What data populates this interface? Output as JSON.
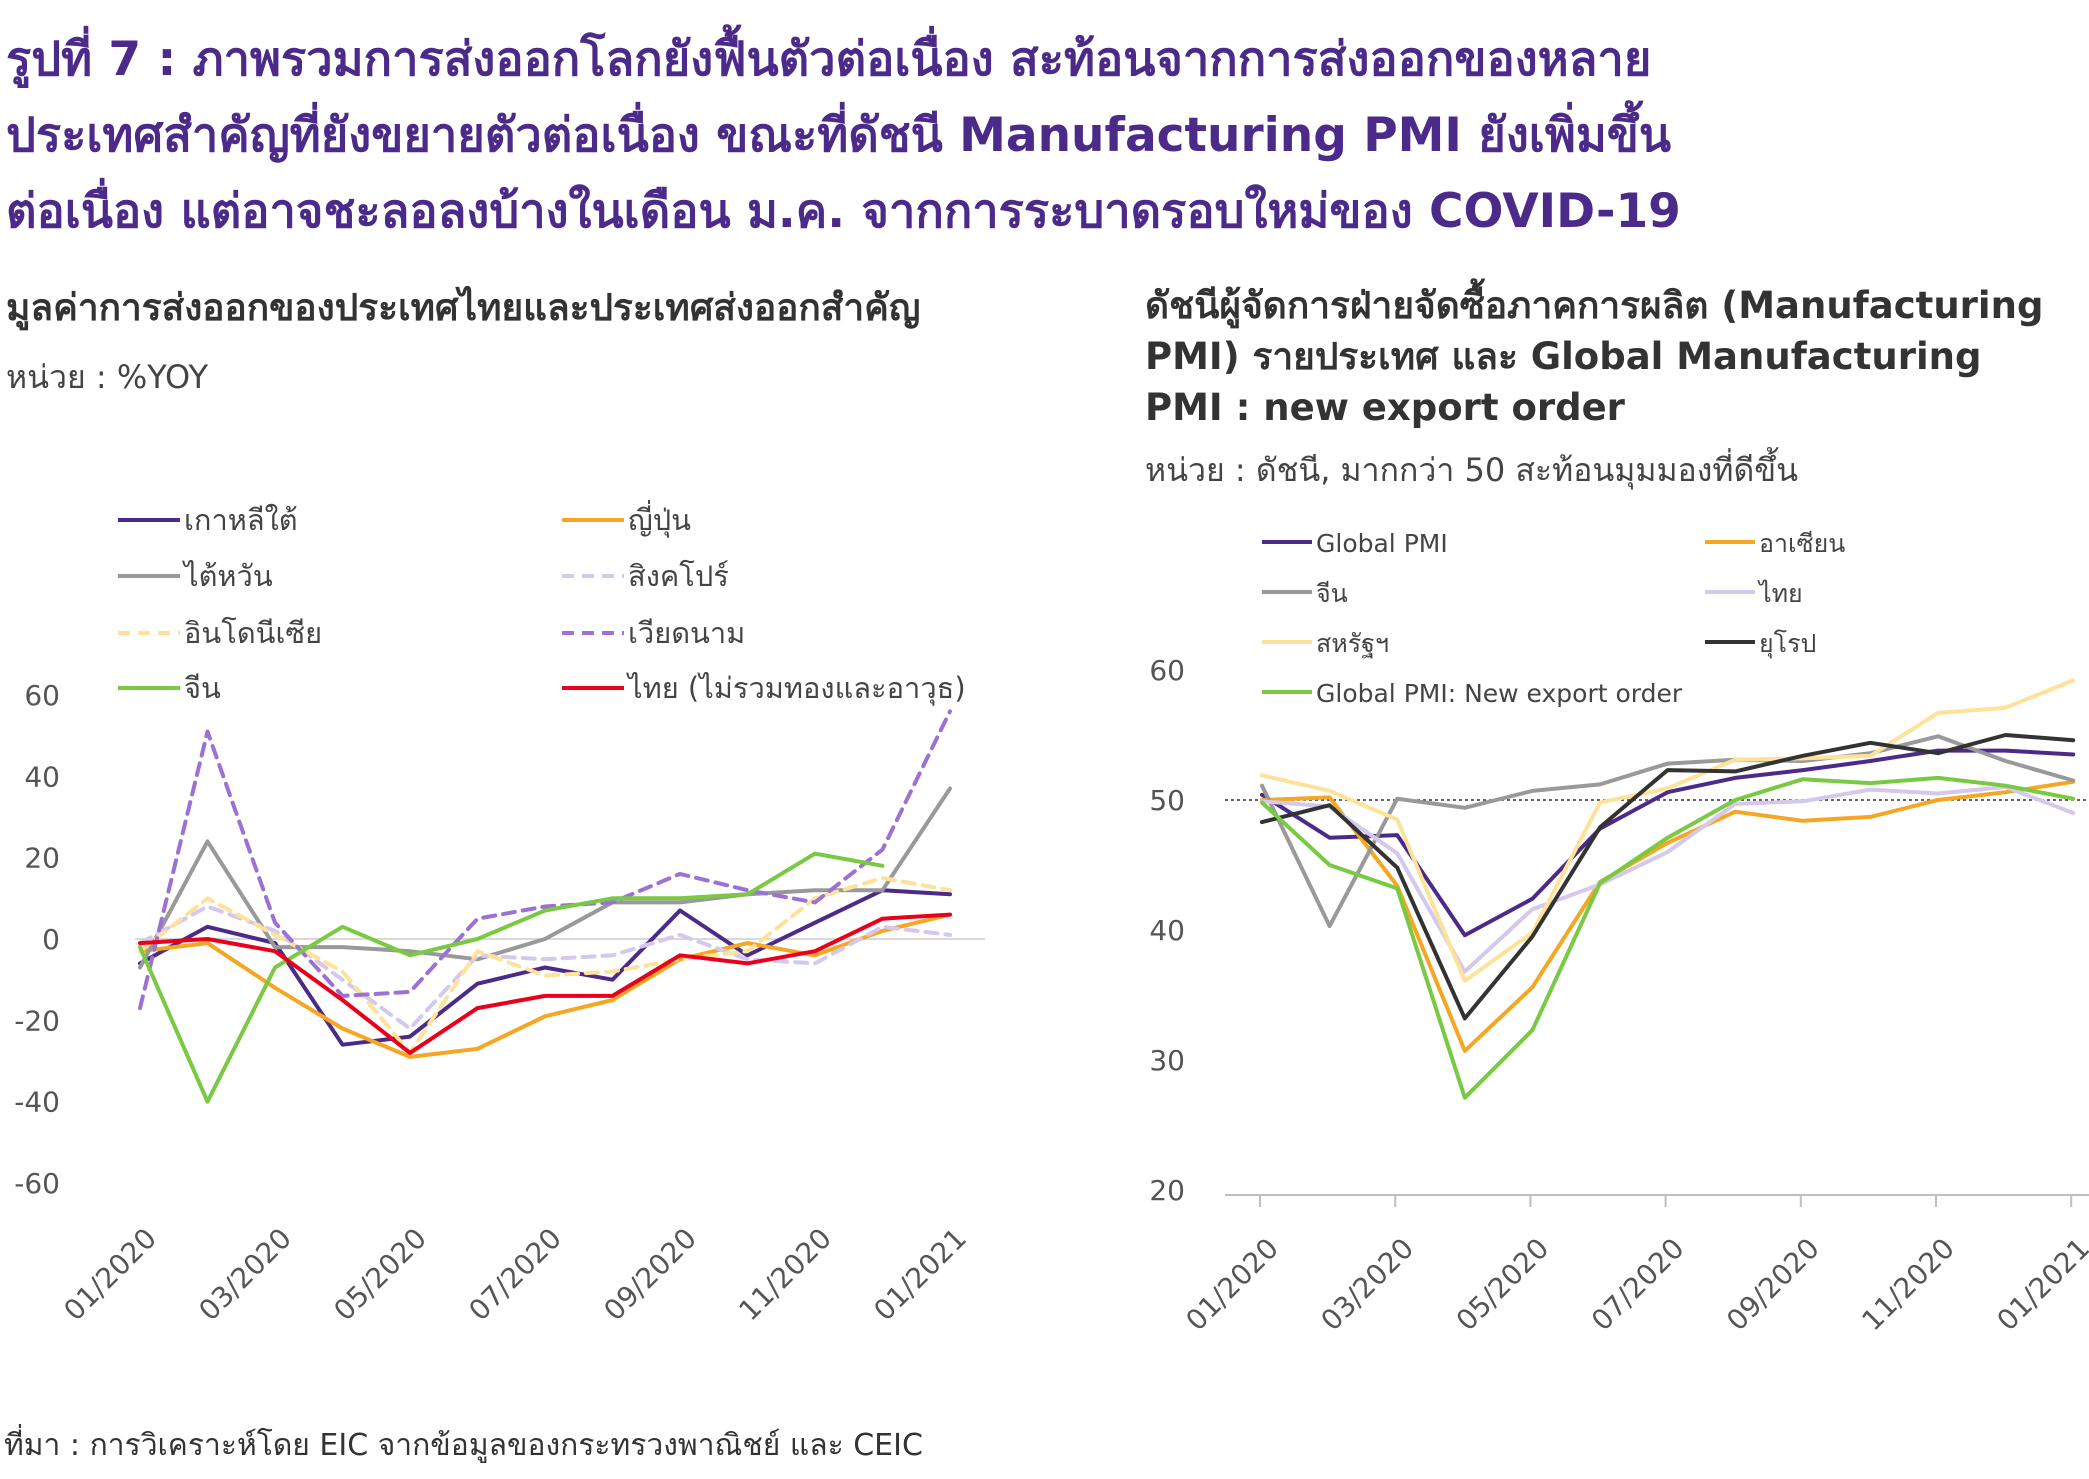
{
  "header": {
    "title_lines": [
      "รูปที่ 7 : ภาพรวมการส่งออกโลกยังฟื้นตัวต่อเนื่อง สะท้อนจากการส่งออกของหลาย",
      "ประเทศสำคัญที่ยังขยายตัวต่อเนื่อง ขณะที่ดัชนี Manufacturing PMI ยังเพิ่มขึ้น",
      "ต่อเนื่อง แต่อาจชะลอลงบ้างในเดือน ม.ค. จากการระบาดรอบใหม่ของ COVID-19"
    ]
  },
  "left_panel": {
    "title": "มูลค่าการส่งออกของประเทศไทยและประเทศส่งออกสำคัญ",
    "unit": "หน่วย : %YOY"
  },
  "right_panel": {
    "title": "ดัชนีผู้จัดการฝ่ายจัดซื้อภาคการผลิต (Manufacturing PMI) รายประเทศ และ Global Manufacturing PMI : new export order",
    "unit": "หน่วย : ดัชนี, มากกว่า 50 สะท้อนมุมมองที่ดีขึ้น"
  },
  "source": "ที่มา : การวิเคราะห์โดย EIC จากข้อมูลของกระทรวงพาณิชย์ และ CEIC",
  "chart_data": [
    {
      "type": "line",
      "title": "มูลค่าการส่งออกของประเทศไทยและประเทศส่งออกสำคัญ",
      "unit": "%YOY",
      "ylim": [
        -60,
        60
      ],
      "yticks": [
        60,
        40,
        20,
        0,
        -20,
        -40,
        -60
      ],
      "x": [
        "01/2020",
        "02/2020",
        "03/2020",
        "04/2020",
        "05/2020",
        "06/2020",
        "07/2020",
        "08/2020",
        "09/2020",
        "10/2020",
        "11/2020",
        "12/2020",
        "01/2021"
      ],
      "xtick_labels": [
        "01/2020",
        "03/2020",
        "05/2020",
        "07/2020",
        "09/2020",
        "11/2020",
        "01/2021"
      ],
      "legend_position": "top",
      "series": [
        {
          "name": "เกาหลีใต้",
          "color": "#4b2a8a",
          "dash": false,
          "values": [
            -6,
            3,
            -1,
            -26,
            -24,
            -11,
            -7,
            -10,
            7,
            -4,
            4,
            12,
            11
          ]
        },
        {
          "name": "ญี่ปุ่น",
          "color": "#f5a623",
          "dash": false,
          "values": [
            -3,
            -1,
            -12,
            -22,
            -29,
            -27,
            -19,
            -15,
            -5,
            -1,
            -4,
            2,
            6
          ]
        },
        {
          "name": "ไต้หวัน",
          "color": "#999999",
          "dash": false,
          "values": [
            -7,
            24,
            -2,
            -2,
            -3,
            -5,
            0,
            9,
            9,
            11,
            12,
            12,
            37
          ]
        },
        {
          "name": "สิงคโปร์",
          "color": "#d4c8ec",
          "dash": true,
          "values": [
            -1,
            8,
            2,
            -10,
            -22,
            -4,
            -5,
            -4,
            1,
            -5,
            -6,
            3,
            1
          ]
        },
        {
          "name": "อินโดนีเซีย",
          "color": "#ffe299",
          "dash": true,
          "values": [
            -3,
            10,
            1,
            -8,
            -28,
            -3,
            -9,
            -8,
            -5,
            -3,
            10,
            15,
            12
          ]
        },
        {
          "name": "เวียดนาม",
          "color": "#9b72d4",
          "dash": true,
          "values": [
            -17,
            51,
            4,
            -14,
            -13,
            5,
            8,
            9,
            16,
            12,
            9,
            22,
            56
          ]
        },
        {
          "name": "จีน",
          "color": "#7ac943",
          "dash": false,
          "values": [
            -2,
            -40,
            -7,
            3,
            -4,
            0,
            7,
            10,
            10,
            11,
            21,
            18,
            null
          ]
        },
        {
          "name": "ไทย (ไม่รวมทองและอาวุธ)",
          "color": "#e8001c",
          "dash": false,
          "values": [
            -1,
            0,
            -3,
            -15,
            -28,
            -17,
            -14,
            -14,
            -4,
            -6,
            -3,
            5,
            6
          ]
        }
      ]
    },
    {
      "type": "line",
      "title": "ดัชนีผู้จัดการฝ่ายจัดซื้อภาคการผลิต (Manufacturing PMI) รายประเทศ และ Global Manufacturing PMI : new export order",
      "unit": "ดัชนี",
      "ylim": [
        20,
        60
      ],
      "yticks": [
        60,
        50,
        40,
        30,
        20
      ],
      "reference_line": 50,
      "x": [
        "01/2020",
        "02/2020",
        "03/2020",
        "04/2020",
        "05/2020",
        "06/2020",
        "07/2020",
        "08/2020",
        "09/2020",
        "10/2020",
        "11/2020",
        "12/2020",
        "01/2021"
      ],
      "xtick_labels": [
        "01/2020",
        "03/2020",
        "05/2020",
        "07/2020",
        "09/2020",
        "11/2020",
        "01/2021"
      ],
      "legend_position": "top",
      "series": [
        {
          "name": "Global PMI",
          "color": "#4b2a8a",
          "values": [
            50.4,
            47.1,
            47.3,
            39.6,
            42.4,
            47.8,
            50.6,
            51.7,
            52.3,
            53.0,
            53.8,
            53.8,
            53.5
          ]
        },
        {
          "name": "อาเซียน",
          "color": "#f5a623",
          "values": [
            50.0,
            50.2,
            43.4,
            30.7,
            35.6,
            43.7,
            46.7,
            49.1,
            48.4,
            48.7,
            50.0,
            50.6,
            51.4
          ]
        },
        {
          "name": "จีน",
          "color": "#999999",
          "values": [
            51.1,
            40.3,
            50.1,
            49.4,
            50.7,
            51.2,
            52.8,
            53.1,
            53.0,
            53.6,
            54.9,
            53.0,
            51.5
          ]
        },
        {
          "name": "ไทย",
          "color": "#d4c8ec",
          "values": [
            49.9,
            49.5,
            45.9,
            36.8,
            41.6,
            43.5,
            46.0,
            49.7,
            49.9,
            50.8,
            50.5,
            51.0,
            49.0
          ]
        },
        {
          "name": "สหรัฐฯ",
          "color": "#ffe299",
          "values": [
            51.9,
            50.7,
            48.5,
            36.1,
            39.8,
            49.8,
            50.9,
            53.1,
            53.2,
            53.4,
            56.7,
            57.1,
            59.2
          ]
        },
        {
          "name": "ยุโรป",
          "color": "#333333",
          "values": [
            48.3,
            49.6,
            44.8,
            33.2,
            39.5,
            47.9,
            52.3,
            52.2,
            53.4,
            54.4,
            53.6,
            55.0,
            54.6
          ]
        },
        {
          "name": "Global PMI: New export order",
          "color": "#7ac943",
          "values": [
            49.8,
            45.0,
            43.2,
            27.1,
            32.3,
            43.6,
            47.1,
            50.0,
            51.6,
            51.3,
            51.7,
            51.1,
            50.1
          ]
        }
      ]
    }
  ]
}
